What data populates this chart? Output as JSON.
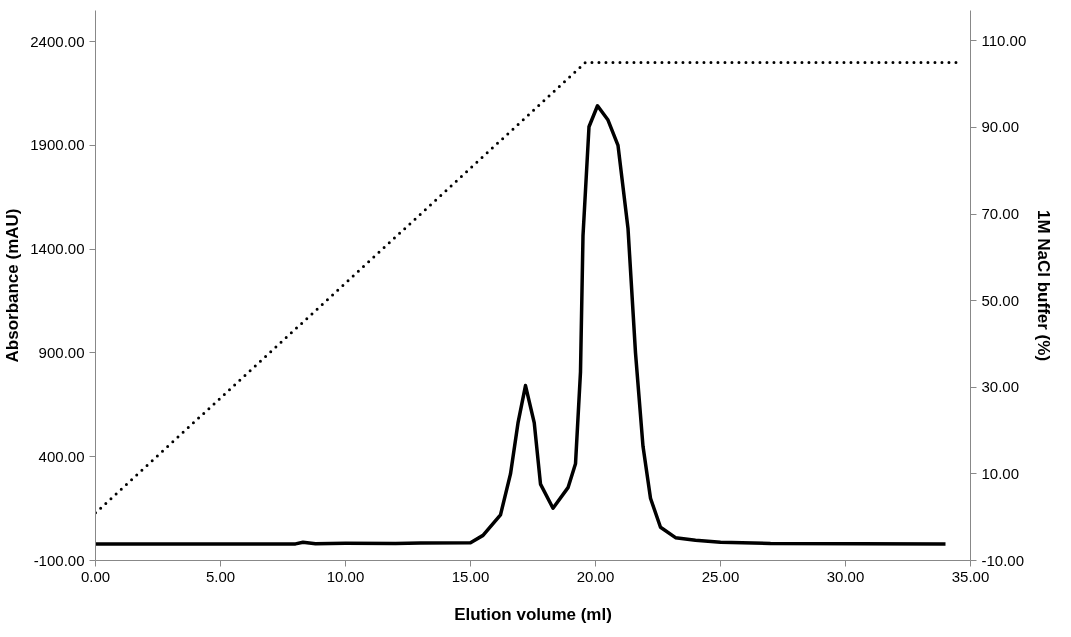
{
  "chart_data": {
    "type": "line",
    "xlabel": "Elution volume (ml)",
    "ylabel": "Absorbance (mAU)",
    "y2label": "1M NaCl buffer (%)",
    "xlim": [
      0,
      35
    ],
    "xticks": [
      {
        "value": 0,
        "label": "0.00"
      },
      {
        "value": 5,
        "label": "5.00"
      },
      {
        "value": 10,
        "label": "10.00"
      },
      {
        "value": 15,
        "label": "15.00"
      },
      {
        "value": 20,
        "label": "20.00"
      },
      {
        "value": 25,
        "label": "25.00"
      },
      {
        "value": 30,
        "label": "30.00"
      },
      {
        "value": 35,
        "label": "35.00"
      }
    ],
    "ylim": [
      -100,
      2550
    ],
    "yticks": [
      {
        "value": -100,
        "label": "-100.00"
      },
      {
        "value": 400,
        "label": "400.00"
      },
      {
        "value": 900,
        "label": "900.00"
      },
      {
        "value": 1400,
        "label": "1400.00"
      },
      {
        "value": 1900,
        "label": "1900.00"
      },
      {
        "value": 2400,
        "label": "2400.00"
      }
    ],
    "y2lim": [
      -10,
      117
    ],
    "y2ticks": [
      {
        "value": -10,
        "label": "-10.00"
      },
      {
        "value": 10,
        "label": "10.00"
      },
      {
        "value": 30,
        "label": "30.00"
      },
      {
        "value": 50,
        "label": "50.00"
      },
      {
        "value": 70,
        "label": "70.00"
      },
      {
        "value": 90,
        "label": "90.00"
      },
      {
        "value": 110,
        "label": "110.00"
      }
    ],
    "grid": false,
    "series": [
      {
        "color": "#000000",
        "line_style": "solid",
        "x": [
          0,
          8,
          8.3,
          8.8,
          10,
          12,
          13,
          15,
          15.5,
          16.2,
          16.6,
          16.9,
          17.2,
          17.55,
          17.8,
          18.3,
          18.9,
          19.2,
          19.4,
          19.5,
          19.74,
          20.08,
          20.5,
          20.9,
          21.3,
          21.6,
          21.9,
          22.2,
          22.6,
          23.2,
          24,
          25,
          27,
          34
        ],
        "values": [
          -20,
          -20,
          -12,
          -19,
          -17,
          -18,
          -16,
          -14,
          21,
          120,
          317,
          563,
          743,
          563,
          268,
          152,
          251,
          366,
          809,
          1465,
          1990,
          2091,
          2022,
          1900,
          1500,
          900,
          450,
          200,
          60,
          10,
          -2,
          -12,
          -18,
          -20
        ]
      },
      {
        "color": "#000000",
        "line_style": "dotted",
        "axis": "y2",
        "x": [
          0,
          19.6,
          34.5
        ],
        "values": [
          1,
          105,
          105
        ]
      }
    ]
  }
}
